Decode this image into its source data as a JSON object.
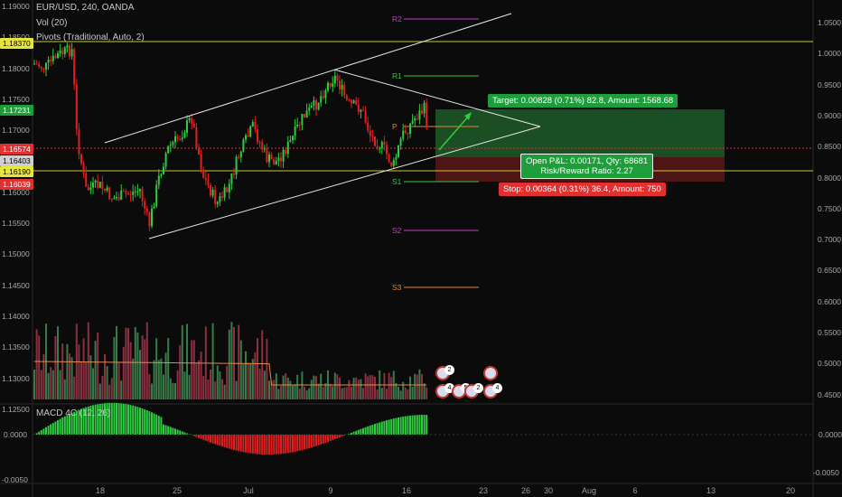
{
  "legend": {
    "symbol": "EUR/USD, 240, OANDA",
    "vol": "Vol (20)",
    "pivots": "Pivots (Traditional, Auto, 2)",
    "macd": "MACD 4C (12, 26)"
  },
  "price_axis_left": [
    "1.19000",
    "1.18500",
    "1.18000",
    "1.17500",
    "1.17000",
    "1.16500",
    "1.16000",
    "1.15500",
    "1.15000",
    "1.14500",
    "1.14000",
    "1.13500",
    "1.13000",
    "1.12500"
  ],
  "price_tags": [
    {
      "label": "1.18370",
      "bg": "#e6e63a",
      "fg": "#000000"
    },
    {
      "label": "1.17231",
      "bg": "#1e9e3a",
      "fg": "#ffffff"
    },
    {
      "label": "1.16574",
      "bg": "#e03030",
      "fg": "#ffffff"
    },
    {
      "label": "1.16403",
      "bg": "#cfcfcf",
      "fg": "#000000"
    },
    {
      "label": "1.16190",
      "bg": "#e6e63a",
      "fg": "#000000"
    },
    {
      "label": "1.16039",
      "bg": "#e03030",
      "fg": "#ffffff"
    }
  ],
  "volume_axis_right": [
    "1.0500",
    "1.0000",
    "0.9500",
    "0.9000",
    "0.8500",
    "0.8000",
    "0.7500",
    "0.7000",
    "0.6500",
    "0.6000",
    "0.5500",
    "0.5000",
    "0.4500"
  ],
  "macd_axis_left": [
    "0.0000",
    "-0.0050"
  ],
  "macd_axis_right": [
    "0.0000",
    "-0.0050"
  ],
  "pivots": [
    {
      "label": "R2",
      "color": "#c040c0"
    },
    {
      "label": "R1",
      "color": "#2ecc40"
    },
    {
      "label": "P",
      "color": "#e08a2a"
    },
    {
      "label": "S1",
      "color": "#2ecc40"
    },
    {
      "label": "S2",
      "color": "#c040c0"
    },
    {
      "label": "S3",
      "color": "#e08a2a"
    }
  ],
  "trade": {
    "target": "Target: 0.00828 (0.71%) 82.8, Amount: 1568.68",
    "open_pl": "Open P&L: 0.00171, Qty: 68681",
    "risk_reward": "Risk/Reward Ratio: 2.27",
    "stop": "Stop: 0.00364 (0.31%) 36.4, Amount: 750"
  },
  "event_badges": [
    "2",
    "4",
    "5",
    "2",
    "4"
  ],
  "date_axis": [
    "18",
    "25",
    "Jul",
    "9",
    "16",
    "23",
    "26",
    "30",
    "Aug",
    "6",
    "13",
    "20"
  ],
  "colors": {
    "up": "#2ecc40",
    "down": "#e02020",
    "vol_up": "#3a7a4a",
    "vol_down": "#8a3040",
    "bg": "#0b0b0b"
  }
}
